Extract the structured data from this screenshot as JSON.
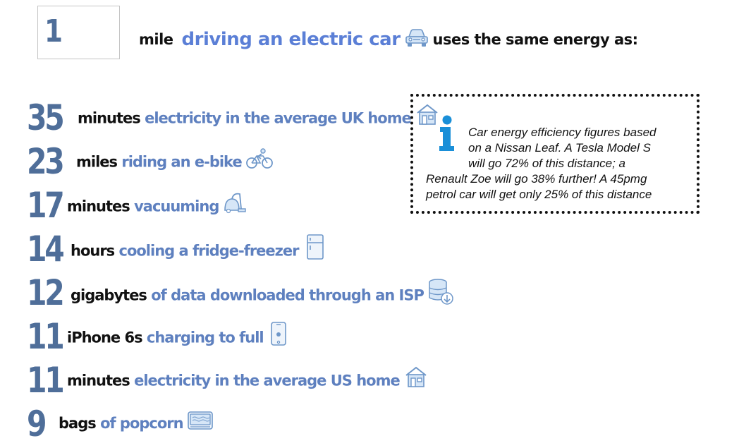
{
  "header": {
    "input_value": "1",
    "unit": "mile",
    "activity": "driving an electric car",
    "activity_icon": "car-icon",
    "suffix": "uses the same energy as:"
  },
  "equivalents": [
    {
      "value": "35",
      "unit": "minutes",
      "description": "electricity in the average UK home",
      "icon": "house-icon"
    },
    {
      "value": "23",
      "unit": "miles",
      "description": "riding an e-bike",
      "icon": "bicycle-icon"
    },
    {
      "value": "17",
      "unit": "minutes",
      "description": "vacuuming",
      "icon": "vacuum-icon"
    },
    {
      "value": "14",
      "unit": "hours",
      "description": "cooling a fridge-freezer",
      "icon": "fridge-icon"
    },
    {
      "value": "12",
      "unit": "gigabytes",
      "description": "of data downloaded through an ISP",
      "icon": "database-download-icon"
    },
    {
      "value": "11",
      "unit": "iPhone 6s",
      "description": "charging to full",
      "icon": "phone-icon"
    },
    {
      "value": "11",
      "unit": "minutes",
      "description": "electricity in the average US home",
      "icon": "house-icon"
    },
    {
      "value": "9",
      "unit": "bags",
      "description": "of popcorn",
      "icon": "microwave-icon"
    }
  ],
  "info_box": {
    "icon": "info-icon",
    "lines": [
      "Car energy efficiency figures based",
      "on a Nissan Leaf. A Tesla Model S",
      "will go 72% of this distance; a",
      "Renault Zoe will go 38% further! A 45pmg",
      "petrol car will get only 25% of this distance"
    ]
  },
  "colors": {
    "number": "#4f6e99",
    "description": "#5e80bf",
    "headline_accent": "#5b7fd6",
    "icon_fill": "#d6e6f7",
    "icon_stroke": "#6e97c9",
    "info_icon": "#1a8fd8"
  }
}
